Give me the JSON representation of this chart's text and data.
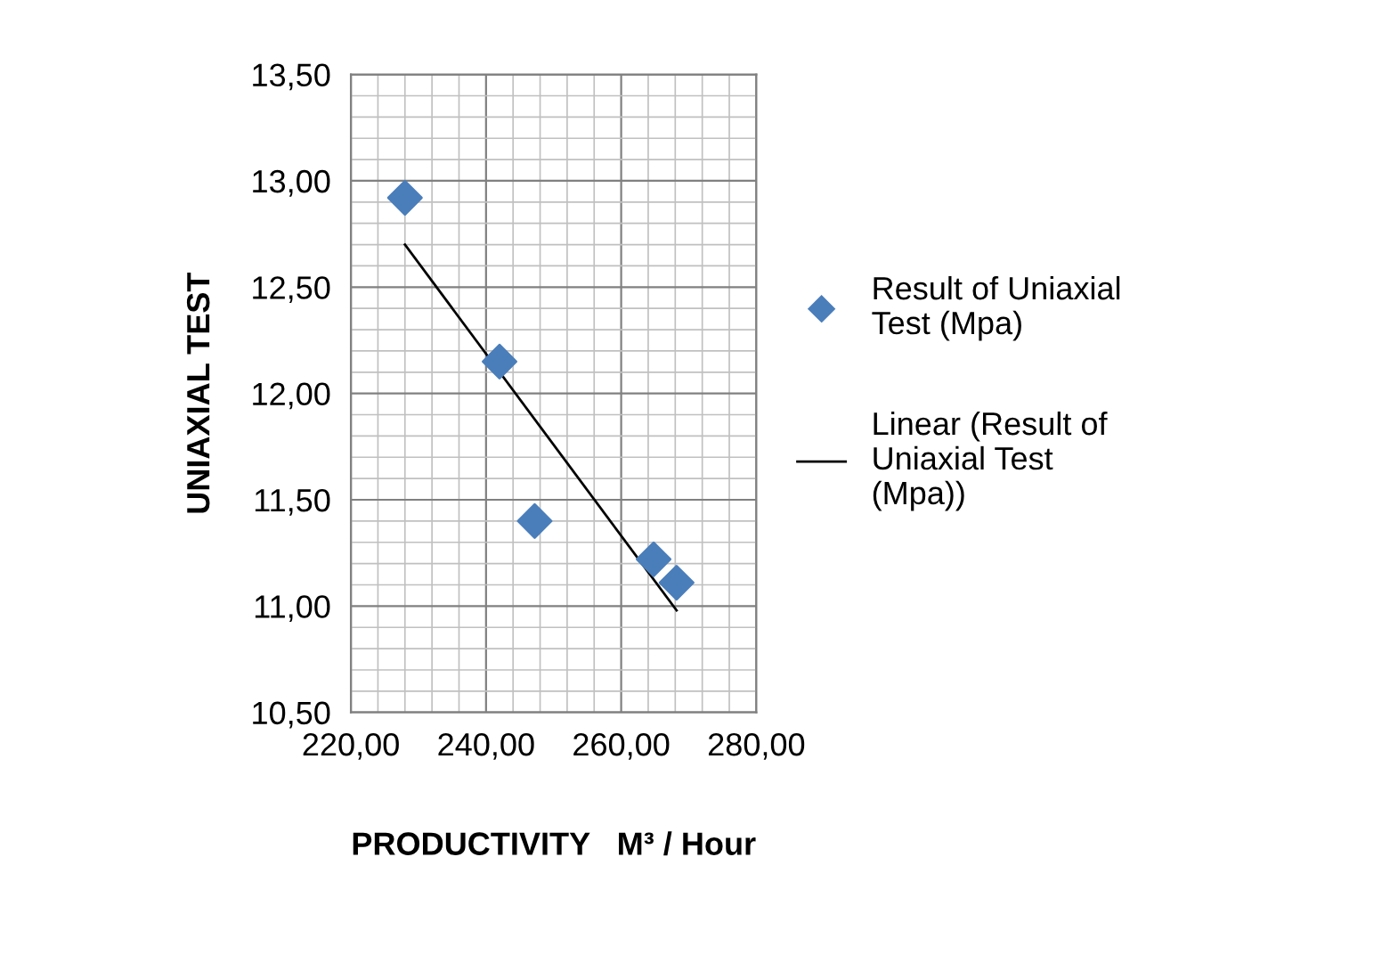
{
  "chart_data": {
    "type": "scatter",
    "xlabel": "PRODUCTIVITY   M³ / Hour",
    "ylabel": "UNIAXIAL TEST",
    "xlim": [
      220,
      280
    ],
    "ylim": [
      10.5,
      13.5
    ],
    "xticks": [
      {
        "value": 220,
        "label": "220,00"
      },
      {
        "value": 240,
        "label": "240,00"
      },
      {
        "value": 260,
        "label": "260,00"
      },
      {
        "value": 280,
        "label": "280,00"
      }
    ],
    "yticks": [
      {
        "value": 10.5,
        "label": "10,50"
      },
      {
        "value": 11,
        "label": "11,00"
      },
      {
        "value": 11.5,
        "label": "11,50"
      },
      {
        "value": 12,
        "label": "12,00"
      },
      {
        "value": 12.5,
        "label": "12,50"
      },
      {
        "value": 13,
        "label": "13,00"
      },
      {
        "value": 13.5,
        "label": "13,50"
      }
    ],
    "grid": true,
    "legend": "right",
    "marker": "diamond",
    "series": [
      {
        "name": "Result of Uniaxial Test (Mpa)",
        "color": "#4a7ebb",
        "x": [
          228,
          242,
          247.2,
          264.8,
          268.2
        ],
        "values": [
          12.92,
          12.15,
          11.4,
          11.22,
          11.11
        ]
      },
      {
        "name": "Linear (Result of Uniaxial Test (Mpa))",
        "type": "line",
        "marker": "none",
        "color": "#000000",
        "x": [
          228,
          268.2
        ],
        "values": [
          12.7,
          10.98
        ]
      }
    ]
  }
}
